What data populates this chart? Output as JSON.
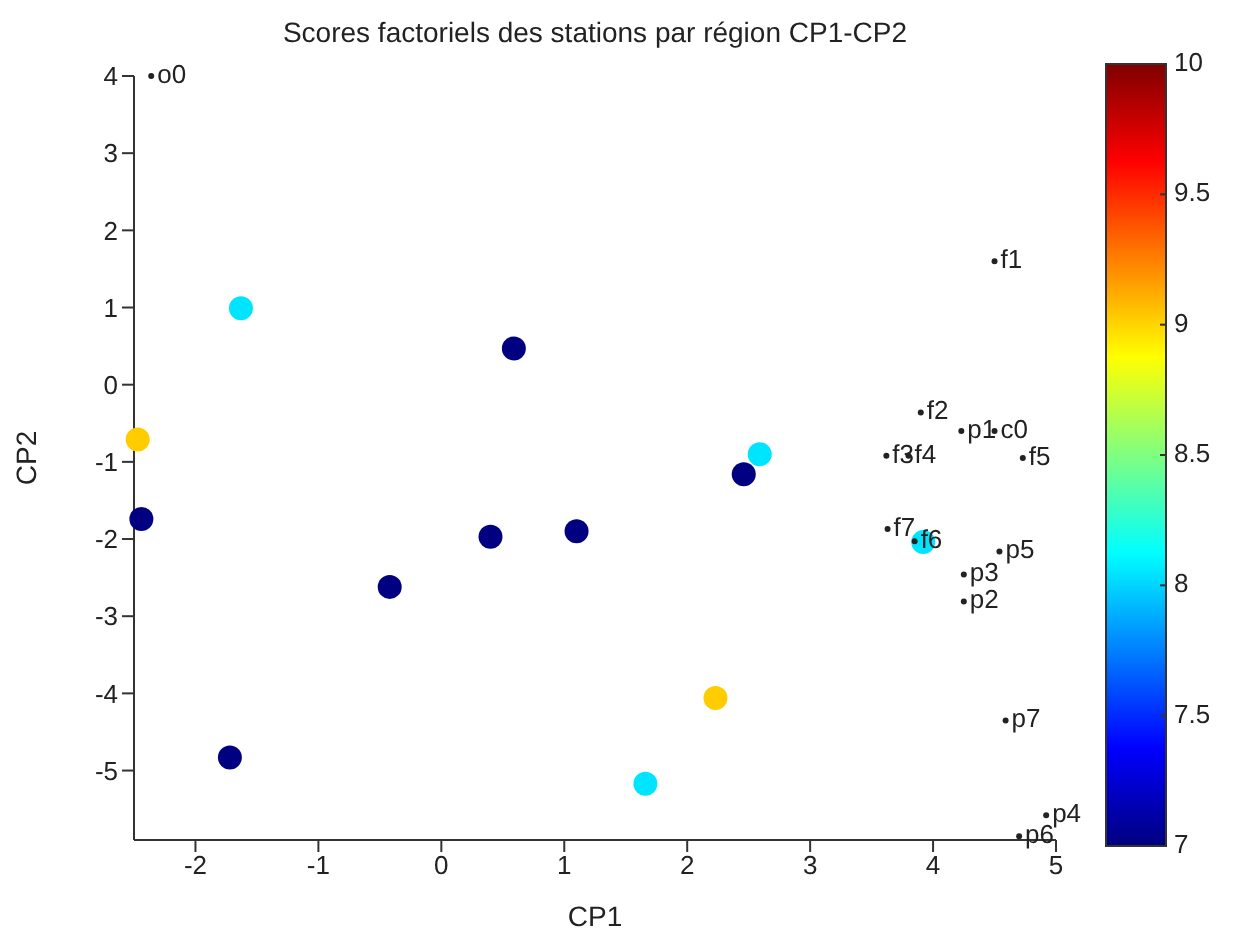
{
  "chart_data": {
    "type": "scatter",
    "title": "Scores factoriels des stations par région CP1-CP2",
    "xlabel": "CP1",
    "ylabel": "CP2",
    "series": [
      {
        "x": [
          -1.63,
          0.59,
          -2.47,
          -2.44,
          -0.42,
          0.4,
          1.1,
          -1.72,
          1.66,
          2.59,
          2.46,
          3.92,
          2.23
        ],
        "values": [
          0.99,
          0.47,
          -0.71,
          -1.74,
          -2.62,
          -1.97,
          -1.9,
          -4.83,
          -5.17,
          -0.9,
          -1.16,
          -2.04,
          -4.06
        ],
        "colors": [
          "#00e5ff",
          "#000080",
          "#ffcc00",
          "#000080",
          "#000080",
          "#000080",
          "#000080",
          "#000080",
          "#00e5ff",
          "#00e5ff",
          "#000080",
          "#00e5ff",
          "#ffcc00"
        ],
        "marker": "circle"
      },
      {
        "x": [
          -2.36,
          4.5,
          3.9,
          4.23,
          4.5,
          3.62,
          3.8,
          4.73,
          3.63,
          3.85,
          4.54,
          4.25,
          4.25,
          4.59,
          4.92,
          4.7
        ],
        "values": [
          4,
          1.6,
          -0.36,
          -0.6,
          -0.6,
          -0.92,
          -0.92,
          -0.95,
          -1.87,
          -2.03,
          -2.16,
          -2.46,
          -2.81,
          -4.35,
          -5.58,
          -5.85
        ],
        "value_labels": [
          "o0",
          "f1",
          "f2",
          "p1",
          "c0",
          "f3",
          "f4",
          "f5",
          "f7",
          "f6",
          "p5",
          "p3",
          "p2",
          "p7",
          "p4",
          "p6"
        ],
        "marker": "circle",
        "color": "#222222"
      }
    ],
    "clim": [
      7,
      10
    ],
    "cticks": [
      7,
      7.5,
      8,
      8.5,
      9,
      9.5,
      10
    ],
    "xlim": [
      -2.5,
      5
    ],
    "xticks": [
      -2,
      -1,
      0,
      1,
      2,
      3,
      4,
      5
    ],
    "ylim": [
      -5.9,
      4
    ],
    "yticks": [
      -5,
      -4,
      -3,
      -2,
      -1,
      0,
      1,
      2,
      3,
      4
    ],
    "grid": false,
    "legend": false
  }
}
